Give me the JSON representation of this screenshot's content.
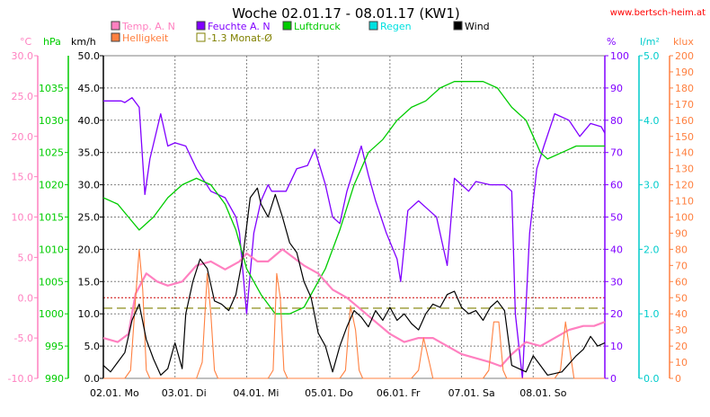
{
  "chart_data": {
    "type": "line",
    "title": "Woche 02.01.17 - 08.01.17 (KW1)",
    "source": "www.bertsch-heim.at",
    "x_labels": [
      "02.01. Mo",
      "03.01. Di",
      "04.01. Mi",
      "05.01. Do",
      "06.01. Fr",
      "07.01. Sa",
      "08.01. So"
    ],
    "x_range_days": [
      0,
      7
    ],
    "legend": [
      {
        "key": "temp",
        "label": "Temp. A. N",
        "color": "#ff80c0"
      },
      {
        "key": "hell",
        "label": "Helligkeit",
        "color": "#ff8040"
      },
      {
        "key": "feuchte",
        "label": "Feuchte A. N",
        "color": "#8000ff"
      },
      {
        "key": "monat",
        "label": "-1.3 Monat-Ø",
        "color": "#808000"
      },
      {
        "key": "druck",
        "label": "Luftdruck",
        "color": "#00cc00"
      },
      {
        "key": "regen",
        "label": "Regen",
        "color": "#00e0e0"
      },
      {
        "key": "wind",
        "label": "Wind",
        "color": "#000000"
      }
    ],
    "axes": {
      "temp": {
        "unit": "°C",
        "color": "#ff80c0",
        "min": -10,
        "max": 30,
        "ticks": [
          "30.0",
          "25.0",
          "20.0",
          "15.0",
          "10.0",
          "5.0",
          "0.0",
          "-5.0",
          "-10.0"
        ]
      },
      "druck": {
        "unit": "hPa",
        "color": "#00cc00",
        "min": 990,
        "max": 1040,
        "ticks": [
          "1035",
          "1030",
          "1025",
          "1020",
          "1015",
          "1010",
          "1005",
          "1000",
          "995",
          "990"
        ]
      },
      "wind": {
        "unit": "km/h",
        "color": "#000000",
        "min": 0,
        "max": 50,
        "ticks": [
          "50.0",
          "45.0",
          "40.0",
          "35.0",
          "30.0",
          "25.0",
          "20.0",
          "15.0",
          "10.0",
          "5.0",
          "0.0"
        ]
      },
      "feuchte": {
        "unit": "%",
        "color": "#8000ff",
        "min": 0,
        "max": 100,
        "ticks": [
          "100",
          "90",
          "80",
          "70",
          "60",
          "50",
          "40",
          "30",
          "20",
          "10",
          "0"
        ]
      },
      "regen": {
        "unit": "l/m²",
        "color": "#00cccc",
        "min": 0,
        "max": 5,
        "ticks": [
          "5.0",
          "4.0",
          "3.0",
          "2.0",
          "1.0",
          "0.0"
        ]
      },
      "hell": {
        "unit": "klux",
        "color": "#ff8040",
        "min": 0,
        "max": 200,
        "ticks": [
          "200",
          "190",
          "180",
          "170",
          "160",
          "150",
          "140",
          "130",
          "120",
          "110",
          "100",
          "90",
          "80",
          "70",
          "60",
          "50",
          "40",
          "30",
          "20",
          "10",
          "0"
        ]
      }
    },
    "reference_lines": {
      "monat_avg_temp": -1.3,
      "zero_temp": 0.0
    },
    "series": [
      {
        "key": "feuchte",
        "name": "Feuchte A. N",
        "axis": "feuchte",
        "points": [
          [
            0,
            86
          ],
          [
            0.25,
            86
          ],
          [
            0.3,
            85.5
          ],
          [
            0.4,
            87
          ],
          [
            0.5,
            84
          ],
          [
            0.58,
            57
          ],
          [
            0.65,
            68
          ],
          [
            0.8,
            82
          ],
          [
            0.9,
            72
          ],
          [
            1.0,
            73
          ],
          [
            1.15,
            72
          ],
          [
            1.3,
            65
          ],
          [
            1.5,
            58
          ],
          [
            1.7,
            56
          ],
          [
            1.85,
            50
          ],
          [
            1.9,
            45
          ],
          [
            2.0,
            20
          ],
          [
            2.1,
            45
          ],
          [
            2.2,
            55
          ],
          [
            2.3,
            60
          ],
          [
            2.35,
            58
          ],
          [
            2.55,
            58
          ],
          [
            2.7,
            65
          ],
          [
            2.85,
            66
          ],
          [
            2.95,
            71
          ],
          [
            3.1,
            60
          ],
          [
            3.2,
            50
          ],
          [
            3.3,
            48
          ],
          [
            3.4,
            58
          ],
          [
            3.5,
            65
          ],
          [
            3.6,
            72
          ],
          [
            3.7,
            63
          ],
          [
            3.8,
            55
          ],
          [
            3.95,
            45
          ],
          [
            4.1,
            37
          ],
          [
            4.15,
            30
          ],
          [
            4.25,
            52
          ],
          [
            4.4,
            55
          ],
          [
            4.55,
            52
          ],
          [
            4.65,
            50
          ],
          [
            4.8,
            35
          ],
          [
            4.9,
            62
          ],
          [
            5.0,
            60
          ],
          [
            5.1,
            58
          ],
          [
            5.2,
            61
          ],
          [
            5.4,
            60
          ],
          [
            5.6,
            60
          ],
          [
            5.7,
            58
          ],
          [
            5.75,
            20
          ],
          [
            5.85,
            0
          ],
          [
            5.95,
            45
          ],
          [
            6.05,
            65
          ],
          [
            6.15,
            72
          ],
          [
            6.3,
            82
          ],
          [
            6.5,
            80
          ],
          [
            6.65,
            75
          ],
          [
            6.8,
            79
          ],
          [
            6.95,
            78
          ],
          [
            7,
            76
          ]
        ]
      },
      {
        "key": "druck",
        "name": "Luftdruck",
        "axis": "druck",
        "points": [
          [
            0,
            1018
          ],
          [
            0.2,
            1017
          ],
          [
            0.35,
            1015
          ],
          [
            0.5,
            1013
          ],
          [
            0.7,
            1015
          ],
          [
            0.9,
            1018
          ],
          [
            1.1,
            1020
          ],
          [
            1.3,
            1021
          ],
          [
            1.5,
            1020
          ],
          [
            1.7,
            1017
          ],
          [
            1.85,
            1013
          ],
          [
            2.0,
            1007
          ],
          [
            2.2,
            1003
          ],
          [
            2.4,
            1000
          ],
          [
            2.6,
            1000
          ],
          [
            2.8,
            1001
          ],
          [
            3.0,
            1005
          ],
          [
            3.1,
            1007
          ],
          [
            3.3,
            1013
          ],
          [
            3.5,
            1020
          ],
          [
            3.7,
            1025
          ],
          [
            3.9,
            1027
          ],
          [
            4.1,
            1030
          ],
          [
            4.3,
            1032
          ],
          [
            4.5,
            1033
          ],
          [
            4.7,
            1035
          ],
          [
            4.9,
            1036
          ],
          [
            5.1,
            1036
          ],
          [
            5.3,
            1036
          ],
          [
            5.5,
            1035
          ],
          [
            5.7,
            1032
          ],
          [
            5.9,
            1030
          ],
          [
            6.1,
            1025
          ],
          [
            6.2,
            1024
          ],
          [
            6.4,
            1025
          ],
          [
            6.6,
            1026
          ],
          [
            6.8,
            1026
          ],
          [
            7,
            1026
          ]
        ]
      },
      {
        "key": "temp",
        "name": "Temp. A. N",
        "axis": "temp",
        "points": [
          [
            0,
            -5.0
          ],
          [
            0.2,
            -5.5
          ],
          [
            0.35,
            -4.5
          ],
          [
            0.45,
            0.5
          ],
          [
            0.6,
            3.0
          ],
          [
            0.75,
            2.0
          ],
          [
            0.9,
            1.5
          ],
          [
            1.1,
            2.0
          ],
          [
            1.3,
            4.0
          ],
          [
            1.5,
            4.5
          ],
          [
            1.7,
            3.5
          ],
          [
            1.9,
            4.5
          ],
          [
            2.0,
            5.5
          ],
          [
            2.15,
            4.5
          ],
          [
            2.3,
            4.5
          ],
          [
            2.5,
            6.0
          ],
          [
            2.65,
            5.0
          ],
          [
            2.8,
            4.0
          ],
          [
            3.0,
            3.0
          ],
          [
            3.2,
            1.0
          ],
          [
            3.4,
            0.0
          ],
          [
            3.6,
            -1.5
          ],
          [
            3.8,
            -3.0
          ],
          [
            4.0,
            -4.5
          ],
          [
            4.2,
            -5.5
          ],
          [
            4.4,
            -5.0
          ],
          [
            4.6,
            -5.0
          ],
          [
            4.8,
            -6.0
          ],
          [
            5.0,
            -7.0
          ],
          [
            5.2,
            -7.5
          ],
          [
            5.4,
            -8.0
          ],
          [
            5.55,
            -8.5
          ],
          [
            5.7,
            -7.0
          ],
          [
            5.9,
            -5.5
          ],
          [
            6.1,
            -6.0
          ],
          [
            6.3,
            -5.0
          ],
          [
            6.5,
            -4.0
          ],
          [
            6.7,
            -3.5
          ],
          [
            6.85,
            -3.5
          ],
          [
            7,
            -3.0
          ]
        ]
      },
      {
        "key": "hell",
        "name": "Helligkeit",
        "axis": "hell",
        "points": [
          [
            0,
            0
          ],
          [
            0.3,
            0
          ],
          [
            0.38,
            5
          ],
          [
            0.45,
            50
          ],
          [
            0.5,
            80
          ],
          [
            0.55,
            55
          ],
          [
            0.6,
            5
          ],
          [
            0.65,
            0
          ],
          [
            1.3,
            0
          ],
          [
            1.38,
            10
          ],
          [
            1.45,
            65
          ],
          [
            1.5,
            40
          ],
          [
            1.55,
            5
          ],
          [
            1.6,
            0
          ],
          [
            2.3,
            0
          ],
          [
            2.37,
            5
          ],
          [
            2.42,
            65
          ],
          [
            2.47,
            50
          ],
          [
            2.52,
            5
          ],
          [
            2.57,
            0
          ],
          [
            3.3,
            0
          ],
          [
            3.38,
            5
          ],
          [
            3.45,
            45
          ],
          [
            3.52,
            30
          ],
          [
            3.57,
            5
          ],
          [
            3.62,
            0
          ],
          [
            4.3,
            0
          ],
          [
            4.4,
            5
          ],
          [
            4.47,
            25
          ],
          [
            4.55,
            10
          ],
          [
            4.6,
            0
          ],
          [
            5.3,
            0
          ],
          [
            5.38,
            5
          ],
          [
            5.45,
            35
          ],
          [
            5.52,
            35
          ],
          [
            5.58,
            5
          ],
          [
            5.63,
            0
          ],
          [
            6.3,
            0
          ],
          [
            6.38,
            5
          ],
          [
            6.45,
            35
          ],
          [
            6.52,
            15
          ],
          [
            6.57,
            0
          ],
          [
            7,
            0
          ]
        ]
      },
      {
        "key": "wind",
        "name": "Wind",
        "axis": "wind",
        "points": [
          [
            0,
            2.0
          ],
          [
            0.1,
            1.0
          ],
          [
            0.2,
            2.5
          ],
          [
            0.3,
            4.0
          ],
          [
            0.4,
            9.0
          ],
          [
            0.5,
            11.5
          ],
          [
            0.6,
            6.0
          ],
          [
            0.7,
            3.0
          ],
          [
            0.8,
            0.5
          ],
          [
            0.9,
            1.5
          ],
          [
            1.0,
            5.5
          ],
          [
            1.1,
            1.5
          ],
          [
            1.15,
            10.0
          ],
          [
            1.25,
            15.0
          ],
          [
            1.35,
            18.5
          ],
          [
            1.45,
            17.0
          ],
          [
            1.55,
            12.0
          ],
          [
            1.65,
            11.5
          ],
          [
            1.75,
            10.5
          ],
          [
            1.85,
            13.0
          ],
          [
            1.95,
            19.0
          ],
          [
            2.05,
            28.0
          ],
          [
            2.15,
            29.5
          ],
          [
            2.2,
            27.0
          ],
          [
            2.3,
            25.0
          ],
          [
            2.4,
            28.5
          ],
          [
            2.5,
            25.0
          ],
          [
            2.6,
            21.0
          ],
          [
            2.7,
            19.5
          ],
          [
            2.8,
            15.0
          ],
          [
            2.9,
            12.5
          ],
          [
            3.0,
            7.0
          ],
          [
            3.1,
            5.0
          ],
          [
            3.2,
            1.0
          ],
          [
            3.3,
            5.0
          ],
          [
            3.4,
            8.0
          ],
          [
            3.5,
            10.5
          ],
          [
            3.6,
            9.5
          ],
          [
            3.7,
            8.0
          ],
          [
            3.8,
            10.5
          ],
          [
            3.9,
            9.0
          ],
          [
            4.0,
            11.0
          ],
          [
            4.1,
            9.0
          ],
          [
            4.2,
            10.0
          ],
          [
            4.3,
            8.5
          ],
          [
            4.4,
            7.5
          ],
          [
            4.5,
            10.0
          ],
          [
            4.6,
            11.5
          ],
          [
            4.7,
            11.0
          ],
          [
            4.8,
            13.0
          ],
          [
            4.9,
            13.5
          ],
          [
            5.0,
            11.0
          ],
          [
            5.1,
            10.0
          ],
          [
            5.2,
            10.5
          ],
          [
            5.3,
            9.0
          ],
          [
            5.4,
            11.0
          ],
          [
            5.5,
            12.0
          ],
          [
            5.6,
            10.5
          ],
          [
            5.7,
            2.0
          ],
          [
            5.8,
            1.5
          ],
          [
            5.9,
            1.0
          ],
          [
            6.0,
            3.5
          ],
          [
            6.1,
            2.0
          ],
          [
            6.2,
            0.5
          ],
          [
            6.4,
            1.0
          ],
          [
            6.6,
            3.5
          ],
          [
            6.7,
            4.5
          ],
          [
            6.8,
            6.5
          ],
          [
            6.9,
            5.0
          ],
          [
            7,
            5.5
          ]
        ]
      }
    ]
  }
}
